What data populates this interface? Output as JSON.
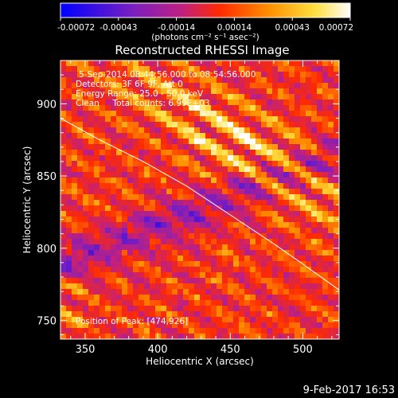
{
  "chart_data": {
    "type": "heatmap",
    "title": "Reconstructed RHESSI Image",
    "xlabel": "Heliocentric X (arcsec)",
    "ylabel": "Heliocentric Y (arcsec)",
    "xlim": [
      333,
      525
    ],
    "ylim": [
      737,
      930
    ],
    "x_ticks": [
      350,
      400,
      450,
      500
    ],
    "y_ticks": [
      750,
      800,
      850,
      900
    ],
    "colorbar": {
      "range": [
        -0.00072,
        0.00072
      ],
      "ticks": [
        "-0.00072",
        "-0.00043",
        "-0.00014",
        "0.00014",
        "0.00043",
        "0.00072"
      ],
      "unit_label": "(photons cm⁻² s⁻¹ asec⁻²)",
      "colors": [
        "#0000ff",
        "#7a1fc0",
        "#c02080",
        "#ff2a00",
        "#ff9000",
        "#ffe040",
        "#ffffff"
      ]
    },
    "annotations": {
      "time_range": "5-Sep-2014 08:44:56.000 to 08:54:56.000",
      "detectors": "Detectors: 3F 6F 9F, Att 0",
      "energy_range": "Energy Range: 25.0 - 50.0 keV",
      "clean_info": "Clean     Total counts: 6.99E+03",
      "peak_position": "Position of Peak: [474,926]"
    },
    "limb": {
      "x": [
        333,
        360,
        390,
        420,
        450,
        480,
        500,
        525
      ],
      "y": [
        890,
        875,
        860,
        843,
        823,
        803,
        789,
        771
      ]
    },
    "grid": false,
    "legend": "none"
  },
  "footer": {
    "timestamp": "9-Feb-2017 16:53"
  }
}
